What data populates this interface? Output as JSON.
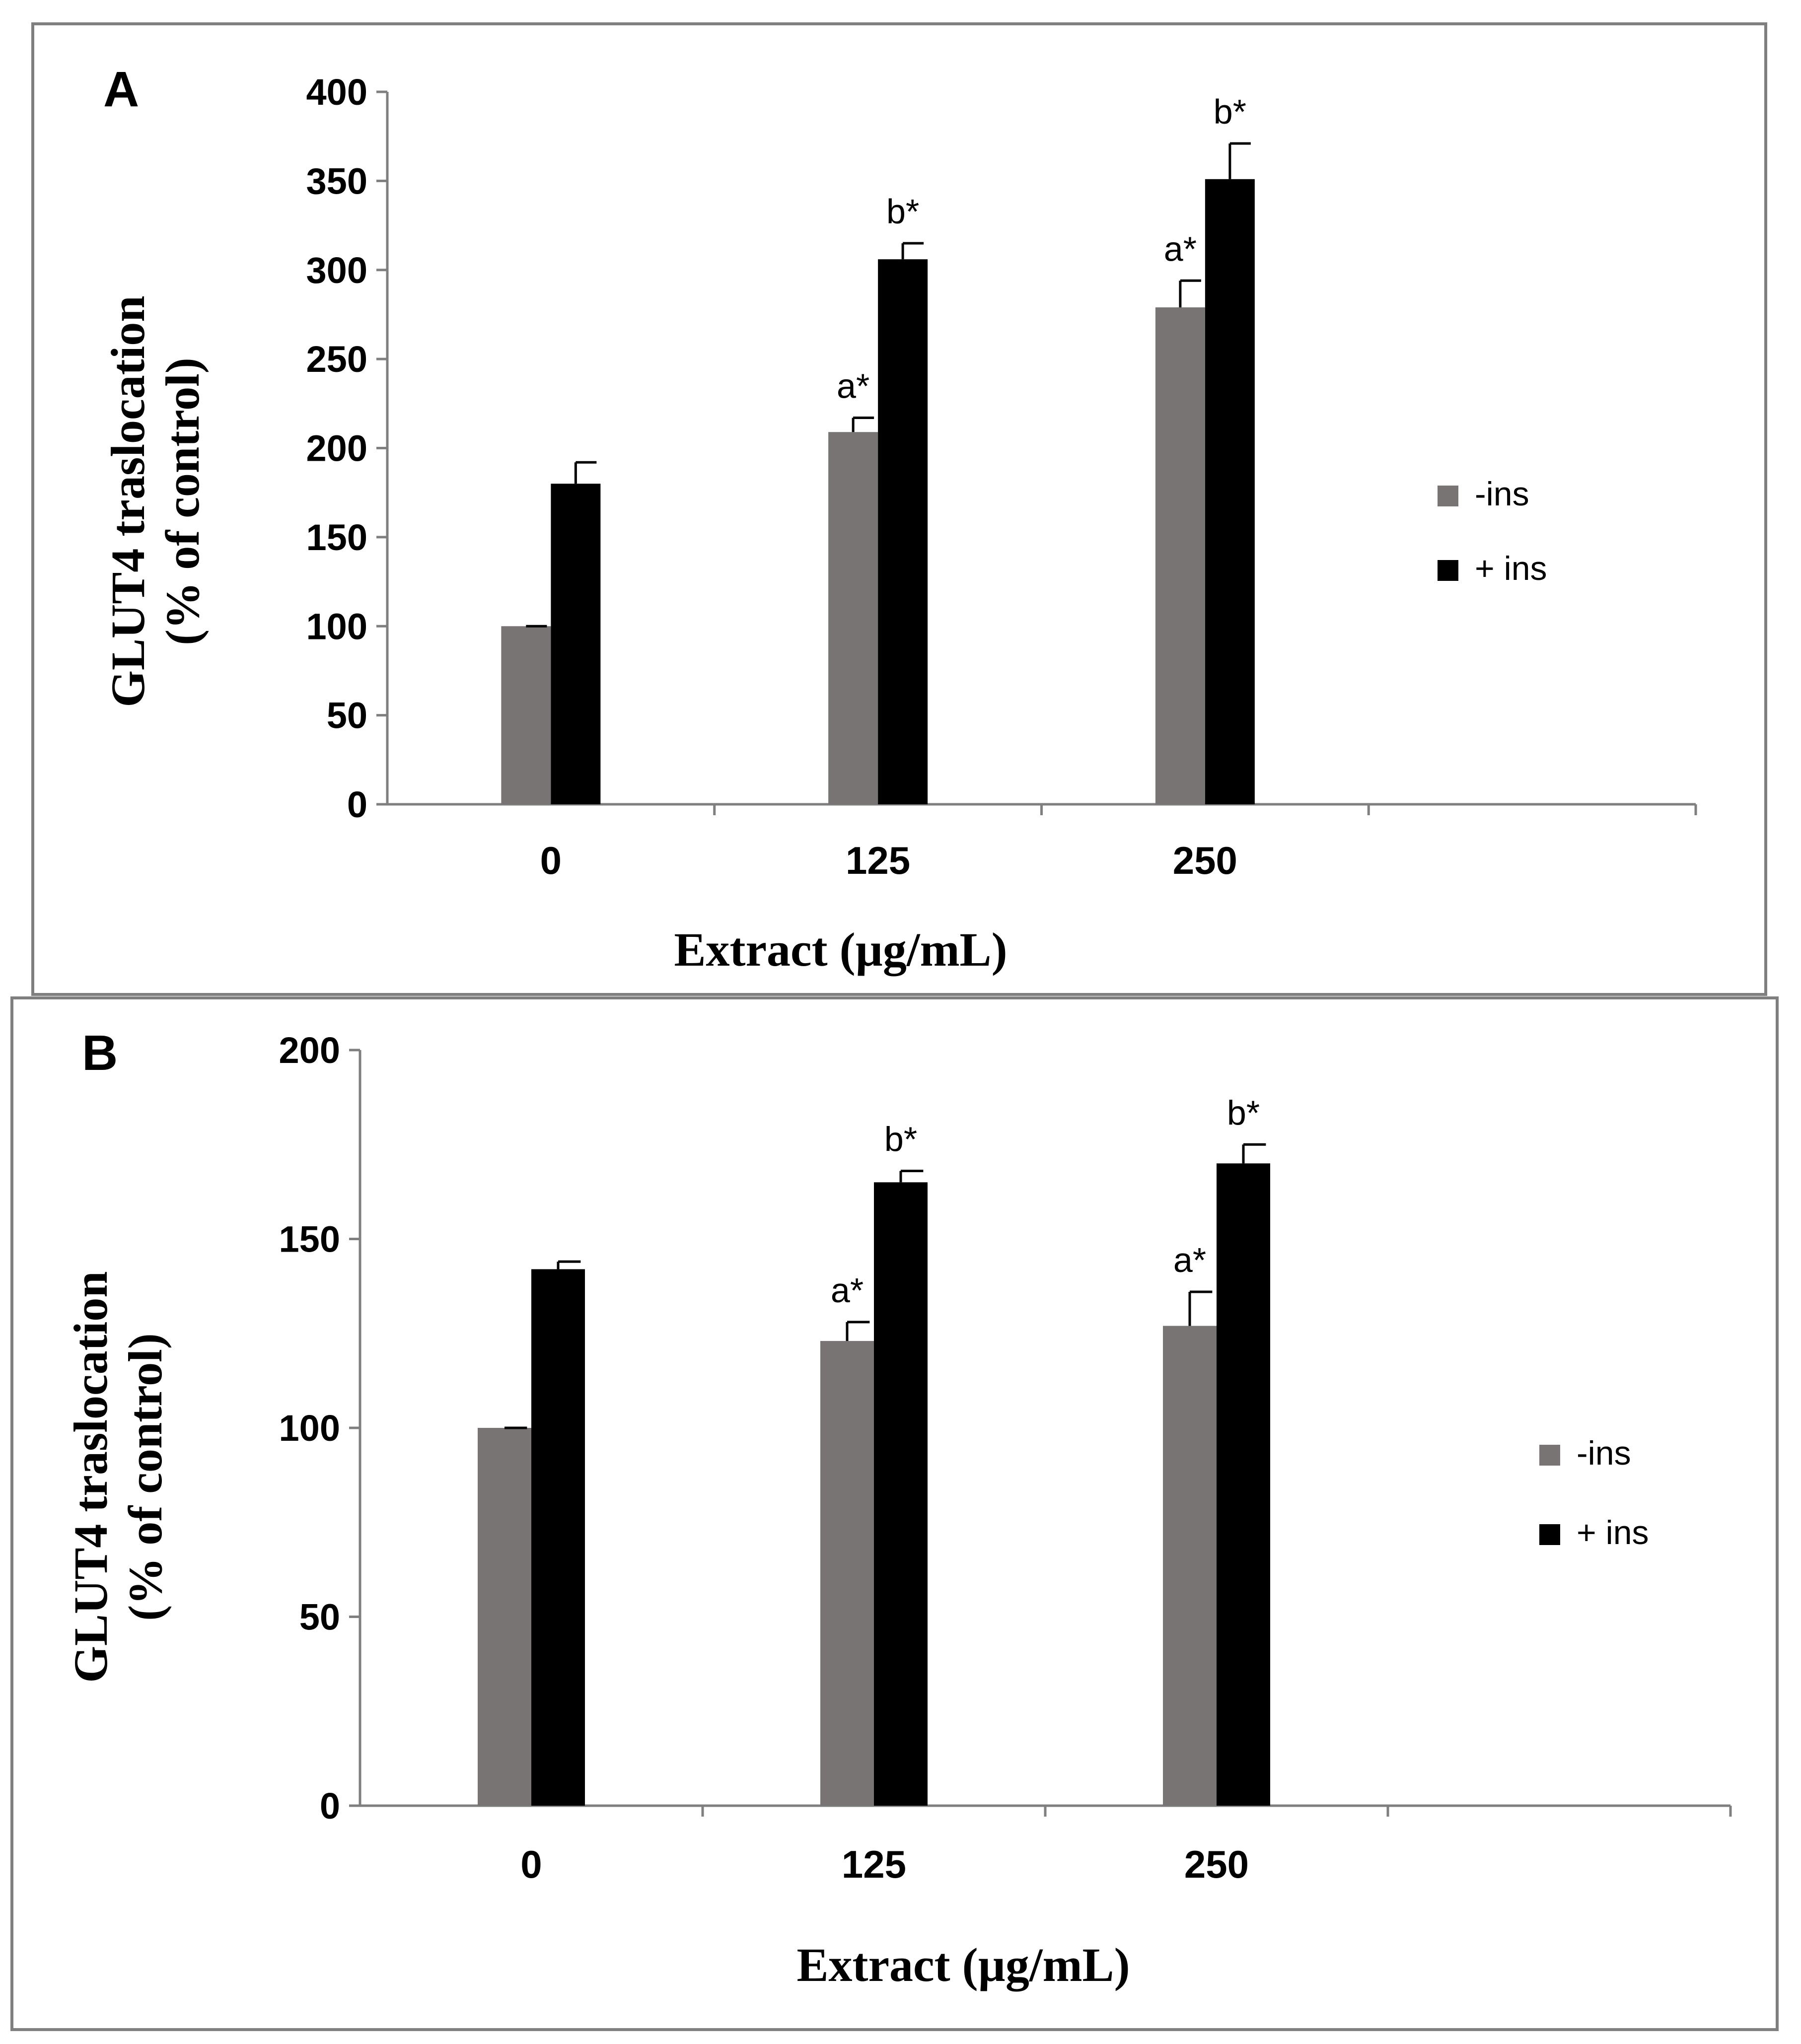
{
  "colors": {
    "minus_ins": "#787474",
    "plus_ins": "#000000",
    "axis": "#7f7f7f",
    "frame": "#7f7f7f"
  },
  "chart_data": [
    {
      "type": "bar",
      "panel_label": "A",
      "title": "",
      "xlabel": "Extract (µg/mL)",
      "ylabel_line1": "GLUT4 traslocation",
      "ylabel_line2": "(% of control)",
      "ylim": [
        0,
        400
      ],
      "yticks": [
        "0",
        "50",
        "100",
        "150",
        "200",
        "250",
        "300",
        "350",
        "400"
      ],
      "categories": [
        "0",
        "125",
        "250"
      ],
      "legend_position": "right",
      "series": [
        {
          "name": "-ins",
          "values": [
            100,
            209,
            279
          ],
          "errors": [
            0,
            8,
            15
          ],
          "annotations": [
            "",
            "a*",
            "a*"
          ]
        },
        {
          "name": "+ ins",
          "values": [
            180,
            306,
            351
          ],
          "errors": [
            12,
            9,
            20
          ],
          "annotations": [
            "",
            "b*",
            "b*"
          ]
        }
      ]
    },
    {
      "type": "bar",
      "panel_label": "B",
      "title": "",
      "xlabel": "Extract (µg/mL)",
      "ylabel_line1": "GLUT4 traslocation",
      "ylabel_line2": "(% of control)",
      "ylim": [
        0,
        200
      ],
      "yticks": [
        "0",
        "50",
        "100",
        "150",
        "200"
      ],
      "categories": [
        "0",
        "125",
        "250"
      ],
      "legend_position": "right",
      "series": [
        {
          "name": "-ins",
          "values": [
            100,
            123,
            127
          ],
          "errors": [
            0,
            5,
            9
          ],
          "annotations": [
            "",
            "a*",
            "a*"
          ]
        },
        {
          "name": "+ ins",
          "values": [
            142,
            165,
            170
          ],
          "errors": [
            2,
            3,
            5
          ],
          "annotations": [
            "",
            "b*",
            "b*"
          ]
        }
      ]
    }
  ]
}
